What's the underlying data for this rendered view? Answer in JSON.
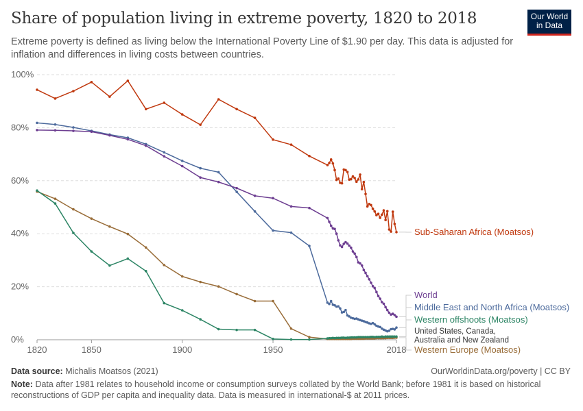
{
  "header": {
    "title": "Share of population living in extreme poverty, 1820 to 2018",
    "subtitle": "Extreme poverty is defined as living below the International Poverty Line of $1.90 per day. This data is adjusted for inflation and differences in living costs between countries.",
    "logo": "Our World in Data"
  },
  "footer": {
    "source_label": "Data source:",
    "source": "Michalis Moatsos (2021)",
    "url": "OurWorldinData.org/poverty | CC BY",
    "note_label": "Note:",
    "note": "Data after 1981 relates to household income or consumption surveys collated by the World Bank; before 1981 it is based on historical reconstructions of GDP per capita and inequality data. Data is measured in international-$ at 2011 prices."
  },
  "chart_data": {
    "type": "line",
    "title": "Share of population living in extreme poverty, 1820 to 2018",
    "xlim": [
      1820,
      2018
    ],
    "ylim": [
      0,
      100
    ],
    "grid": "horizontal dashed",
    "x_ticks": [
      "1820",
      "1850",
      "1900",
      "1950",
      "2018"
    ],
    "y_ticks": [
      "0%",
      "20%",
      "40%",
      "60%",
      "80%",
      "100%"
    ],
    "decade_years": [
      1820,
      1830,
      1840,
      1850,
      1860,
      1870,
      1880,
      1890,
      1900,
      1910,
      1920,
      1930,
      1940,
      1950,
      1960,
      1970,
      1980
    ],
    "annual_years_from": 1981,
    "series": [
      {
        "name": "Sub-Saharan Africa (Moatsos)",
        "color": "#c0390f",
        "decades": [
          94.3,
          91,
          93.8,
          97.2,
          91.7,
          97.7,
          87,
          89.4,
          85,
          81.1,
          90.7,
          87,
          83.7,
          75.5,
          73.6,
          69.3,
          65.9
        ],
        "annual": [
          66.7,
          68,
          66.5,
          64,
          60.3,
          60.8,
          59.2,
          59,
          64.2,
          64,
          63.3,
          60.4,
          60.6,
          61.6,
          61,
          59.6,
          60.5,
          62.3,
          56.8,
          59.5,
          55,
          50.3,
          51.2,
          50.8,
          49.4,
          48.4,
          47,
          47.5,
          46,
          47.2,
          48.8,
          45.2,
          48.5,
          41.6,
          40.8,
          48.3,
          43.7,
          40.6
        ]
      },
      {
        "name": "World",
        "color": "#6d3e91",
        "decades": [
          79.1,
          79,
          78.8,
          78.5,
          77.1,
          75.6,
          73.2,
          69.2,
          65.5,
          61.2,
          59.5,
          57.2,
          54.3,
          53.4,
          50.3,
          49.7,
          45.9
        ],
        "annual": [
          44.5,
          43,
          42,
          41.8,
          40,
          37.5,
          35.6,
          35,
          36.2,
          36.8,
          36.3,
          35.5,
          34.7,
          33.3,
          32.5,
          31.2,
          29.2,
          28.8,
          28,
          26.3,
          25.2,
          24,
          22.8,
          21.5,
          20.2,
          19.5,
          18,
          16.5,
          15.5,
          14.2,
          13.6,
          12.3,
          11.2,
          10.2,
          9.5,
          9.8,
          9.3,
          8.7
        ]
      },
      {
        "name": "Middle East and North Africa (Moatsos)",
        "color": "#4c6a9c",
        "decades": [
          81.8,
          81.2,
          80.1,
          78.8,
          77.4,
          76.2,
          73.8,
          70.7,
          67.5,
          64.7,
          63.2,
          55.8,
          48.4,
          41.2,
          40.4,
          35.4,
          14
        ],
        "annual": [
          13.5,
          14.6,
          13.2,
          13,
          12.5,
          12.6,
          11.8,
          10.3,
          10.5,
          11.2,
          9.2,
          8.8,
          8.3,
          8.1,
          7.9,
          8,
          7.7,
          7.4,
          7.2,
          7,
          6.7,
          6.5,
          6.2,
          6,
          6.3,
          5.8,
          5.3,
          5,
          4.8,
          4.2,
          3.8,
          3.5,
          3.2,
          3.4,
          4,
          4.1,
          3.9,
          4.6
        ]
      },
      {
        "name": "Western offshoots (Moatsos)",
        "sublabel": "United States, Canada, Australia and New Zealand",
        "color": "#2d8565",
        "decades": [
          56.3,
          51.4,
          40.3,
          33.3,
          28,
          30.6,
          25.9,
          13.8,
          11.1,
          7.7,
          4,
          3.7,
          3.7,
          0.3,
          0.1,
          0.1,
          0.5
        ],
        "annual": [
          0.6,
          0.6,
          0.7,
          0.6,
          0.7,
          0.7,
          0.7,
          0.8,
          0.8,
          0.7,
          0.8,
          0.8,
          0.9,
          0.9,
          0.9,
          0.9,
          1,
          1,
          1,
          1,
          1,
          1,
          1,
          1.1,
          1.1,
          1,
          1.1,
          1.1,
          1.1,
          1.2,
          1.1,
          1.2,
          1.2,
          1.2,
          1.2,
          1.2,
          1.2,
          1.2
        ]
      },
      {
        "name": "Western Europe (Moatsos)",
        "color": "#996d39",
        "decades": [
          55.9,
          53.2,
          49.2,
          45.7,
          42.7,
          39.9,
          34.8,
          28.2,
          23.9,
          21.8,
          20.1,
          17.2,
          14.6,
          14.6,
          4.2,
          1,
          0.3
        ],
        "annual": [
          0.3,
          0.3,
          0.3,
          0.3,
          0.3,
          0.3,
          0.3,
          0.3,
          0.3,
          0.3,
          0.3,
          0.3,
          0.3,
          0.4,
          0.4,
          0.4,
          0.4,
          0.4,
          0.4,
          0.4,
          0.5,
          0.5,
          0.5,
          0.5,
          0.5,
          0.5,
          0.6,
          0.6,
          0.6,
          0.6,
          0.6,
          0.6,
          0.7,
          0.7,
          0.7,
          0.7,
          0.8,
          0.8
        ]
      }
    ]
  }
}
